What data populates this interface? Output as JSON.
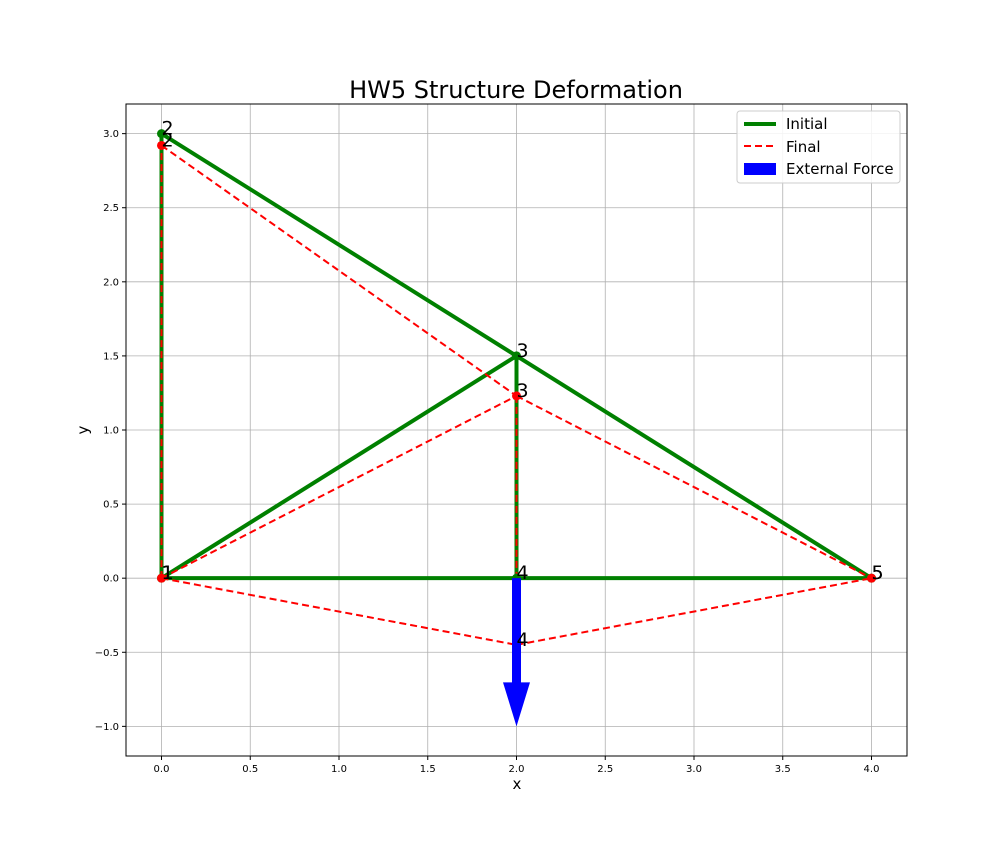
{
  "chart_data": {
    "type": "line",
    "title": "HW5 Structure Deformation",
    "xlabel": "x",
    "ylabel": "y",
    "xlim": [
      -0.2,
      4.2
    ],
    "ylim": [
      -1.2,
      3.2
    ],
    "grid": true,
    "xticks": [
      0.0,
      0.5,
      1.0,
      1.5,
      2.0,
      2.5,
      3.0,
      3.5,
      4.0
    ],
    "xtick_labels": [
      "0.0",
      "0.5",
      "1.0",
      "1.5",
      "2.0",
      "2.5",
      "3.0",
      "3.5",
      "4.0"
    ],
    "yticks": [
      -1.0,
      -0.5,
      0.0,
      0.5,
      1.0,
      1.5,
      2.0,
      2.5,
      3.0
    ],
    "ytick_labels": [
      "−1.0",
      "−0.5",
      "0.0",
      "0.5",
      "1.0",
      "1.5",
      "2.0",
      "2.5",
      "3.0"
    ],
    "members": [
      [
        1,
        2
      ],
      [
        2,
        3
      ],
      [
        3,
        5
      ],
      [
        1,
        3
      ],
      [
        3,
        4
      ],
      [
        1,
        4
      ],
      [
        4,
        5
      ]
    ],
    "series": [
      {
        "name": "Initial",
        "style": "solid",
        "color": "#008000",
        "nodes": [
          {
            "id": "1",
            "x": 0.0,
            "y": 0.0
          },
          {
            "id": "2",
            "x": 0.0,
            "y": 3.0
          },
          {
            "id": "3",
            "x": 2.0,
            "y": 1.5
          },
          {
            "id": "4",
            "x": 2.0,
            "y": 0.0
          },
          {
            "id": "5",
            "x": 4.0,
            "y": 0.0
          }
        ]
      },
      {
        "name": "Final",
        "style": "dashed",
        "color": "#ff0000",
        "nodes": [
          {
            "id": "1",
            "x": 0.0,
            "y": 0.0
          },
          {
            "id": "2",
            "x": 0.0,
            "y": 2.92
          },
          {
            "id": "3",
            "x": 2.0,
            "y": 1.23
          },
          {
            "id": "4",
            "x": 2.0,
            "y": -0.45
          },
          {
            "id": "5",
            "x": 4.0,
            "y": 0.0
          }
        ]
      }
    ],
    "external_force": {
      "name": "External Force",
      "color": "#0000ff",
      "x": 2.0,
      "y_start": 0.0,
      "y_end": -1.0
    },
    "legend": {
      "position": "upper right",
      "entries": [
        "Initial",
        "Final",
        "External Force"
      ]
    }
  }
}
